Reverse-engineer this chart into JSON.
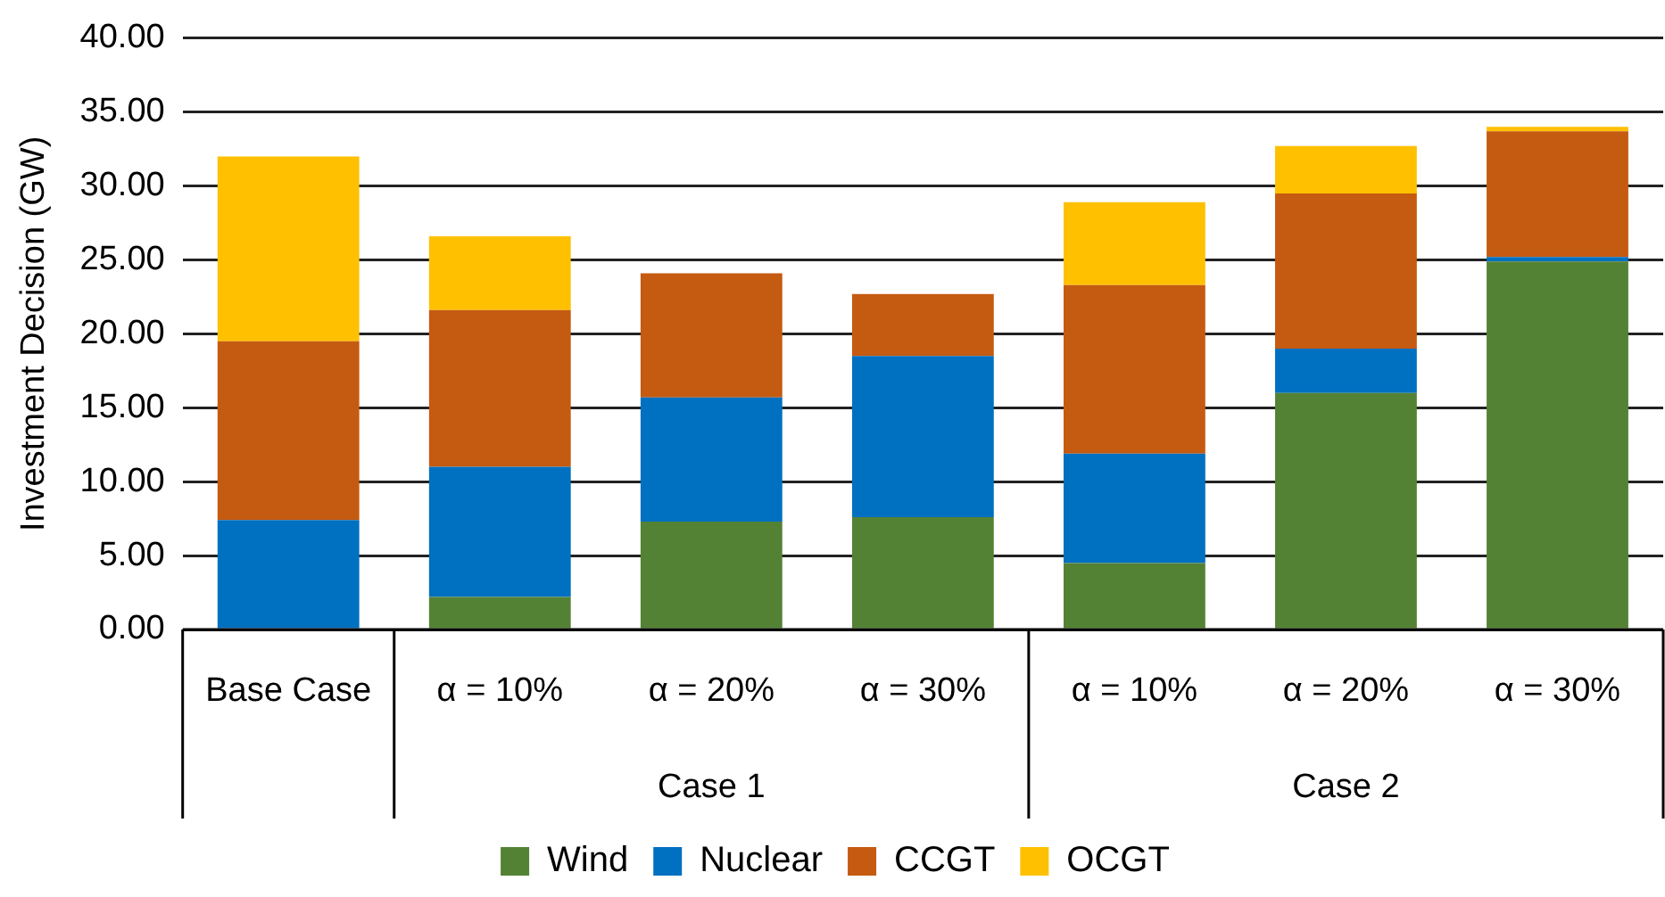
{
  "chart_data": {
    "type": "bar",
    "stacked": true,
    "ylabel": "Investment Decision (GW)",
    "categories": [
      "Base Case",
      "α = 10%",
      "α = 20%",
      "α = 30%",
      "α = 10%",
      "α = 20%",
      "α = 30%"
    ],
    "annotations": [
      "Case 1",
      "Case 2"
    ],
    "series": [
      {
        "name": "Wind",
        "color": "#548235",
        "values": [
          0,
          2.2,
          7.3,
          7.6,
          4.5,
          16.0,
          24.9
        ]
      },
      {
        "name": "Nuclear",
        "color": "#0070c0",
        "values": [
          7.4,
          8.8,
          8.4,
          10.9,
          7.4,
          3.0,
          0.3
        ]
      },
      {
        "name": "CCGT",
        "color": "#c55a11",
        "values": [
          12.1,
          10.6,
          8.4,
          4.2,
          11.4,
          10.5,
          8.5
        ]
      },
      {
        "name": "OCGT",
        "color": "#ffc000",
        "values": [
          12.5,
          5.0,
          0,
          0,
          5.6,
          3.2,
          0.3
        ]
      }
    ],
    "ylim": [
      0,
      40
    ],
    "yticks": [
      {
        "value": 0,
        "label": "0.00"
      },
      {
        "value": 5,
        "label": "5.00"
      },
      {
        "value": 10,
        "label": "10.00"
      },
      {
        "value": 15,
        "label": "15.00"
      },
      {
        "value": 20,
        "label": "20.00"
      },
      {
        "value": 25,
        "label": "25.00"
      },
      {
        "value": 30,
        "label": "30.00"
      },
      {
        "value": 35,
        "label": "35.00"
      },
      {
        "value": 40,
        "label": "40.00"
      }
    ],
    "grid": "y",
    "legend": "bottom"
  }
}
